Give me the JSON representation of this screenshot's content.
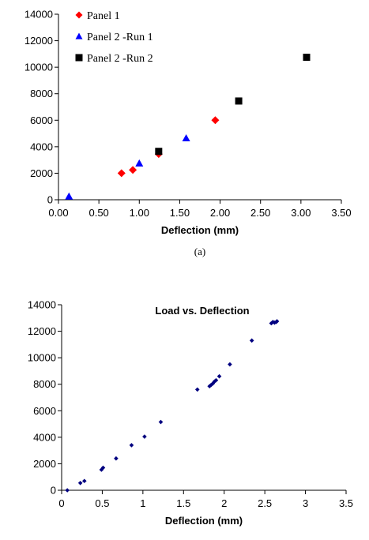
{
  "chart_data": [
    {
      "type": "scatter",
      "title": "",
      "xlabel": "Deflection (mm)",
      "ylabel": "",
      "caption": "(a)",
      "xlim": [
        0,
        3.5
      ],
      "ylim": [
        0,
        14000
      ],
      "xticks": [
        "0.00",
        "0.50",
        "1.00",
        "1.50",
        "2.00",
        "2.50",
        "3.00",
        "3.50"
      ],
      "yticks": [
        "0",
        "2000",
        "4000",
        "6000",
        "8000",
        "10000",
        "12000",
        "14000"
      ],
      "grid": false,
      "legend_position": "top-left",
      "series": [
        {
          "name": "Panel 1",
          "marker": "diamond",
          "color": "#ff0000",
          "x": [
            0.78,
            0.92,
            1.24,
            1.94
          ],
          "y": [
            2000,
            2250,
            3450,
            6000
          ]
        },
        {
          "name": "Panel 2  -Run 1",
          "marker": "triangle",
          "color": "#0000ff",
          "x": [
            0.13,
            1.0,
            1.58
          ],
          "y": [
            250,
            2750,
            4650
          ]
        },
        {
          "name": "Panel 2 -Run 2",
          "marker": "square",
          "color": "#000000",
          "x": [
            1.24,
            2.23,
            3.07
          ],
          "y": [
            3650,
            7450,
            10750
          ]
        }
      ]
    },
    {
      "type": "scatter",
      "title": "Load vs. Deflection",
      "xlabel": "Deflection (mm)",
      "ylabel": "",
      "xlim": [
        0,
        3.5
      ],
      "ylim": [
        0,
        14000
      ],
      "xticks": [
        "0",
        "0.5",
        "1",
        "1.5",
        "2",
        "2.5",
        "3",
        "3.5"
      ],
      "yticks": [
        "0",
        "2000",
        "4000",
        "6000",
        "8000",
        "10000",
        "12000",
        "14000"
      ],
      "grid": false,
      "series": [
        {
          "marker": "diamond",
          "color": "#000080",
          "x": [
            0.07,
            0.23,
            0.28,
            0.49,
            0.51,
            0.67,
            0.86,
            1.02,
            1.22,
            1.67,
            1.82,
            1.84,
            1.86,
            1.88,
            1.9,
            1.94,
            2.07,
            2.34,
            2.58,
            2.6,
            2.62,
            2.64,
            2.65
          ],
          "y": [
            0,
            550,
            700,
            1550,
            1700,
            2400,
            3400,
            4050,
            5150,
            7600,
            7850,
            7950,
            8050,
            8200,
            8300,
            8600,
            9500,
            11300,
            12600,
            12700,
            12650,
            12700,
            12750
          ]
        }
      ]
    }
  ]
}
